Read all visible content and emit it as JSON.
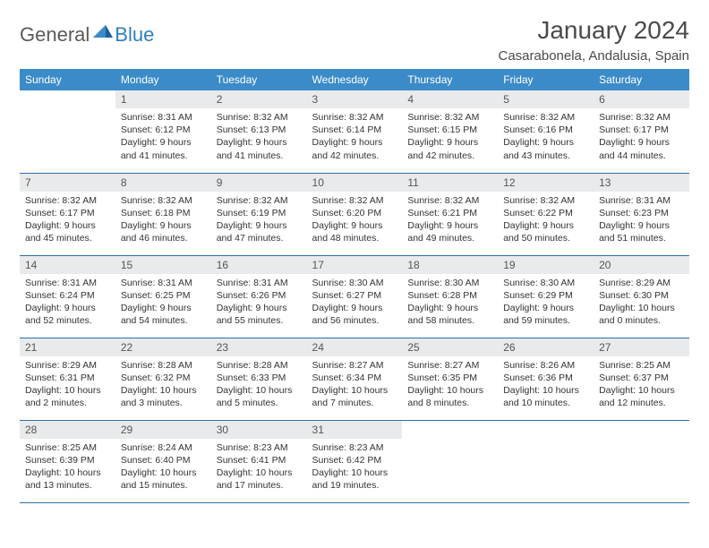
{
  "brand": {
    "part1": "General",
    "part2": "Blue"
  },
  "title": "January 2024",
  "location": "Casarabonela, Andalusia, Spain",
  "colors": {
    "header_bg": "#3b8bc8",
    "header_text": "#ffffff",
    "daynum_bg": "#e9eaeb",
    "row_border": "#2d6ea5",
    "brand_gray": "#5a5a5a",
    "brand_blue": "#2f7fbf"
  },
  "dayHeaders": [
    "Sunday",
    "Monday",
    "Tuesday",
    "Wednesday",
    "Thursday",
    "Friday",
    "Saturday"
  ],
  "layout": {
    "firstDayOffset": 1,
    "daysInMonth": 31
  },
  "days": {
    "1": {
      "sunrise": "8:31 AM",
      "sunset": "6:12 PM",
      "daylight": "9 hours and 41 minutes."
    },
    "2": {
      "sunrise": "8:32 AM",
      "sunset": "6:13 PM",
      "daylight": "9 hours and 41 minutes."
    },
    "3": {
      "sunrise": "8:32 AM",
      "sunset": "6:14 PM",
      "daylight": "9 hours and 42 minutes."
    },
    "4": {
      "sunrise": "8:32 AM",
      "sunset": "6:15 PM",
      "daylight": "9 hours and 42 minutes."
    },
    "5": {
      "sunrise": "8:32 AM",
      "sunset": "6:16 PM",
      "daylight": "9 hours and 43 minutes."
    },
    "6": {
      "sunrise": "8:32 AM",
      "sunset": "6:17 PM",
      "daylight": "9 hours and 44 minutes."
    },
    "7": {
      "sunrise": "8:32 AM",
      "sunset": "6:17 PM",
      "daylight": "9 hours and 45 minutes."
    },
    "8": {
      "sunrise": "8:32 AM",
      "sunset": "6:18 PM",
      "daylight": "9 hours and 46 minutes."
    },
    "9": {
      "sunrise": "8:32 AM",
      "sunset": "6:19 PM",
      "daylight": "9 hours and 47 minutes."
    },
    "10": {
      "sunrise": "8:32 AM",
      "sunset": "6:20 PM",
      "daylight": "9 hours and 48 minutes."
    },
    "11": {
      "sunrise": "8:32 AM",
      "sunset": "6:21 PM",
      "daylight": "9 hours and 49 minutes."
    },
    "12": {
      "sunrise": "8:32 AM",
      "sunset": "6:22 PM",
      "daylight": "9 hours and 50 minutes."
    },
    "13": {
      "sunrise": "8:31 AM",
      "sunset": "6:23 PM",
      "daylight": "9 hours and 51 minutes."
    },
    "14": {
      "sunrise": "8:31 AM",
      "sunset": "6:24 PM",
      "daylight": "9 hours and 52 minutes."
    },
    "15": {
      "sunrise": "8:31 AM",
      "sunset": "6:25 PM",
      "daylight": "9 hours and 54 minutes."
    },
    "16": {
      "sunrise": "8:31 AM",
      "sunset": "6:26 PM",
      "daylight": "9 hours and 55 minutes."
    },
    "17": {
      "sunrise": "8:30 AM",
      "sunset": "6:27 PM",
      "daylight": "9 hours and 56 minutes."
    },
    "18": {
      "sunrise": "8:30 AM",
      "sunset": "6:28 PM",
      "daylight": "9 hours and 58 minutes."
    },
    "19": {
      "sunrise": "8:30 AM",
      "sunset": "6:29 PM",
      "daylight": "9 hours and 59 minutes."
    },
    "20": {
      "sunrise": "8:29 AM",
      "sunset": "6:30 PM",
      "daylight": "10 hours and 0 minutes."
    },
    "21": {
      "sunrise": "8:29 AM",
      "sunset": "6:31 PM",
      "daylight": "10 hours and 2 minutes."
    },
    "22": {
      "sunrise": "8:28 AM",
      "sunset": "6:32 PM",
      "daylight": "10 hours and 3 minutes."
    },
    "23": {
      "sunrise": "8:28 AM",
      "sunset": "6:33 PM",
      "daylight": "10 hours and 5 minutes."
    },
    "24": {
      "sunrise": "8:27 AM",
      "sunset": "6:34 PM",
      "daylight": "10 hours and 7 minutes."
    },
    "25": {
      "sunrise": "8:27 AM",
      "sunset": "6:35 PM",
      "daylight": "10 hours and 8 minutes."
    },
    "26": {
      "sunrise": "8:26 AM",
      "sunset": "6:36 PM",
      "daylight": "10 hours and 10 minutes."
    },
    "27": {
      "sunrise": "8:25 AM",
      "sunset": "6:37 PM",
      "daylight": "10 hours and 12 minutes."
    },
    "28": {
      "sunrise": "8:25 AM",
      "sunset": "6:39 PM",
      "daylight": "10 hours and 13 minutes."
    },
    "29": {
      "sunrise": "8:24 AM",
      "sunset": "6:40 PM",
      "daylight": "10 hours and 15 minutes."
    },
    "30": {
      "sunrise": "8:23 AM",
      "sunset": "6:41 PM",
      "daylight": "10 hours and 17 minutes."
    },
    "31": {
      "sunrise": "8:23 AM",
      "sunset": "6:42 PM",
      "daylight": "10 hours and 19 minutes."
    }
  },
  "labels": {
    "sunrise": "Sunrise:",
    "sunset": "Sunset:",
    "daylight": "Daylight:"
  }
}
